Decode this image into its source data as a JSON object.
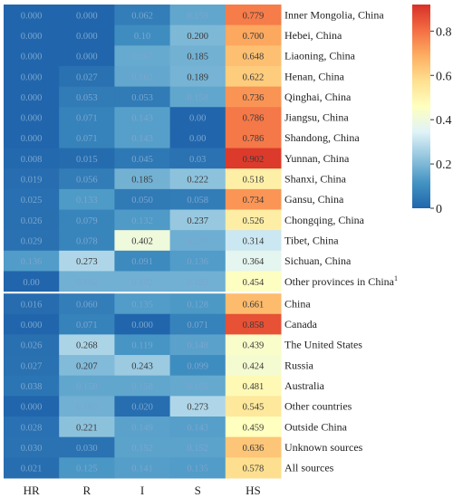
{
  "chart_data": {
    "type": "heatmap",
    "columns": [
      "HR",
      "R",
      "I",
      "S",
      "HS"
    ],
    "rows": [
      "Inner Mongolia, China",
      "Hebei, China",
      "Liaoning, China",
      "Henan, China",
      "Qinghai, China",
      "Jiangsu, China",
      "Shandong, China",
      "Yunnan, China",
      "Shanxi, China",
      "Gansu, China",
      "Chongqing, China",
      "Tibet, China",
      "Sichuan, China",
      "Other provinces in China",
      "China",
      "Canada",
      "The United States",
      "Russia",
      "Australia",
      "Other countries",
      "Outside China",
      "Unknown sources",
      "All sources"
    ],
    "row_superscripts": {
      "Other provinces in China": "1"
    },
    "values": [
      [
        0.0,
        0.0,
        0.062,
        0.159,
        0.779
      ],
      [
        0.0,
        0.0,
        0.1,
        0.2,
        0.7
      ],
      [
        0.0,
        0.0,
        0.167,
        0.185,
        0.648
      ],
      [
        0.0,
        0.027,
        0.162,
        0.189,
        0.622
      ],
      [
        0.0,
        0.053,
        0.053,
        0.158,
        0.736
      ],
      [
        0.0,
        0.071,
        0.143,
        0.0,
        0.786
      ],
      [
        0.0,
        0.071,
        0.143,
        0.0,
        0.786
      ],
      [
        0.008,
        0.015,
        0.045,
        0.03,
        0.902
      ],
      [
        0.019,
        0.056,
        0.185,
        0.222,
        0.518
      ],
      [
        0.025,
        0.133,
        0.05,
        0.058,
        0.734
      ],
      [
        0.026,
        0.079,
        0.132,
        0.237,
        0.526
      ],
      [
        0.029,
        0.078,
        0.402,
        0.177,
        0.314
      ],
      [
        0.136,
        0.273,
        0.091,
        0.136,
        0.364
      ],
      [
        0.0,
        0.182,
        0.182,
        0.182,
        0.454
      ],
      [
        0.016,
        0.06,
        0.135,
        0.128,
        0.661
      ],
      [
        0.0,
        0.071,
        0.0,
        0.071,
        0.858
      ],
      [
        0.026,
        0.268,
        0.119,
        0.148,
        0.439
      ],
      [
        0.027,
        0.207,
        0.243,
        0.099,
        0.424
      ],
      [
        0.038,
        0.158,
        0.158,
        0.165,
        0.481
      ],
      [
        0.0,
        0.182,
        0.02,
        0.273,
        0.545
      ],
      [
        0.028,
        0.221,
        0.149,
        0.143,
        0.459
      ],
      [
        0.03,
        0.03,
        0.152,
        0.152,
        0.636
      ],
      [
        0.021,
        0.125,
        0.141,
        0.135,
        0.578
      ]
    ],
    "cell_text": [
      [
        "0.000",
        "0.000",
        "0.062",
        "0.159",
        "0.779"
      ],
      [
        "0.000",
        "0.000",
        "0.10",
        "0.200",
        "0.700"
      ],
      [
        "0.000",
        "0.000",
        "0.167",
        "0.185",
        "0.648"
      ],
      [
        "0.000",
        "0.027",
        "0.162",
        "0.189",
        "0.622"
      ],
      [
        "0.000",
        "0.053",
        "0.053",
        "0.158",
        "0.736"
      ],
      [
        "0.000",
        "0.071",
        "0.143",
        "0.00",
        "0.786"
      ],
      [
        "0.000",
        "0.071",
        "0.143",
        "0.00",
        "0.786"
      ],
      [
        "0.008",
        "0.015",
        "0.045",
        "0.03",
        "0.902"
      ],
      [
        "0.019",
        "0.056",
        "0.185",
        "0.222",
        "0.518"
      ],
      [
        "0.025",
        "0.133",
        "0.050",
        "0.058",
        "0.734"
      ],
      [
        "0.026",
        "0.079",
        "0.132",
        "0.237",
        "0.526"
      ],
      [
        "0.029",
        "0.078",
        "0.402",
        "0.177",
        "0.314"
      ],
      [
        "0.136",
        "0.273",
        "0.091",
        "0.136",
        "0.364"
      ],
      [
        "0.00",
        "0.182",
        "0.182",
        "0.182",
        "0.454"
      ],
      [
        "0.016",
        "0.060",
        "0.135",
        "0.128",
        "0.661"
      ],
      [
        "0.000",
        "0.071",
        "0.000",
        "0.071",
        "0.858"
      ],
      [
        "0.026",
        "0.268",
        "0.119",
        "0.148",
        "0.439"
      ],
      [
        "0.027",
        "0.207",
        "0.243",
        "0.099",
        "0.424"
      ],
      [
        "0.038",
        "0.158",
        "0.158",
        "0.165",
        "0.481"
      ],
      [
        "0.000",
        "0.182",
        "0.020",
        "0.273",
        "0.545"
      ],
      [
        "0.028",
        "0.221",
        "0.149",
        "0.143",
        "0.459"
      ],
      [
        "0.030",
        "0.030",
        "0.152",
        "0.152",
        "0.636"
      ],
      [
        "0.021",
        "0.125",
        "0.141",
        "0.135",
        "0.578"
      ]
    ],
    "group_break_after_row": 13,
    "colorscale": {
      "name": "RdYlBu_r",
      "range": [
        0,
        0.92
      ],
      "ticks": [
        0,
        0.2,
        0.4,
        0.6,
        0.8
      ],
      "tick_labels": [
        "0",
        "0.2",
        "0.4",
        "0.6",
        "0.8"
      ],
      "stops": [
        "#2166ac",
        "#4393c3",
        "#92c5de",
        "#e0f3f8",
        "#ffffbf",
        "#fee090",
        "#fdae61",
        "#f46d43",
        "#d73027"
      ]
    },
    "title": "",
    "xlabel": "",
    "ylabel": "",
    "legend": "colorbar top-right"
  }
}
